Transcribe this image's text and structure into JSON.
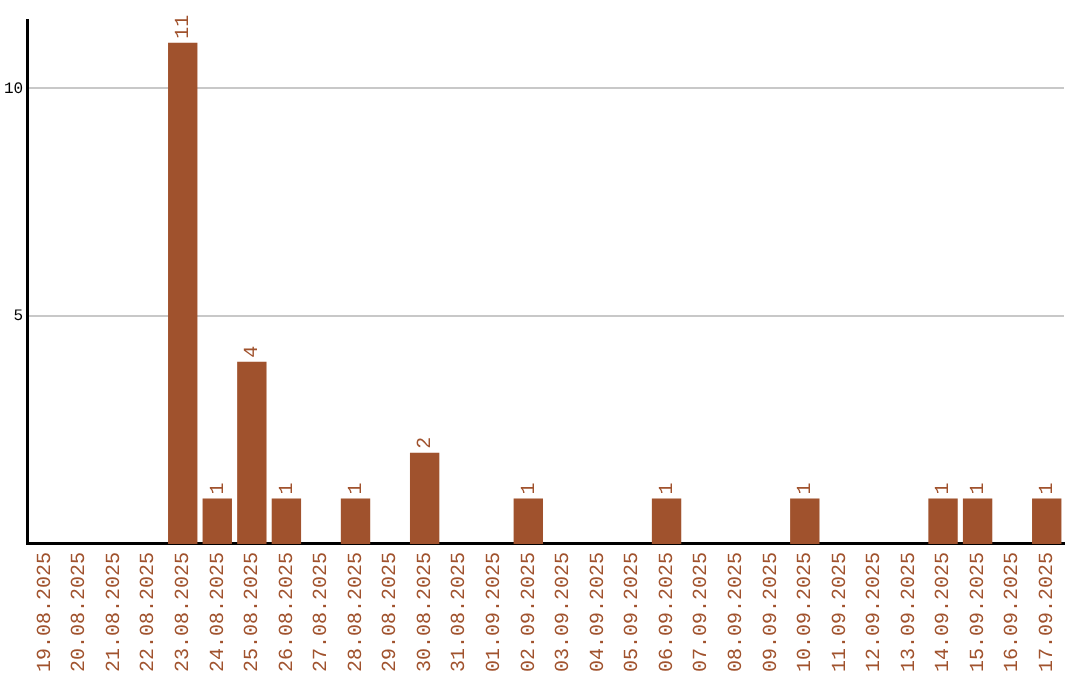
{
  "chart_data": {
    "type": "bar",
    "categories": [
      "19.08.2025",
      "20.08.2025",
      "21.08.2025",
      "22.08.2025",
      "23.08.2025",
      "24.08.2025",
      "25.08.2025",
      "26.08.2025",
      "27.08.2025",
      "28.08.2025",
      "29.08.2025",
      "30.08.2025",
      "31.08.2025",
      "01.09.2025",
      "02.09.2025",
      "03.09.2025",
      "04.09.2025",
      "05.09.2025",
      "06.09.2025",
      "07.09.2025",
      "08.09.2025",
      "09.09.2025",
      "10.09.2025",
      "11.09.2025",
      "12.09.2025",
      "13.09.2025",
      "14.09.2025",
      "15.09.2025",
      "16.09.2025",
      "17.09.2025"
    ],
    "values": [
      0,
      0,
      0,
      0,
      11,
      1,
      4,
      1,
      0,
      1,
      0,
      2,
      0,
      0,
      1,
      0,
      0,
      0,
      1,
      0,
      0,
      0,
      1,
      0,
      0,
      0,
      1,
      1,
      0,
      1
    ],
    "value_labels": [
      null,
      null,
      null,
      null,
      "11",
      "1",
      "4",
      "1",
      null,
      "1",
      null,
      "2",
      null,
      null,
      "1",
      null,
      null,
      null,
      "1",
      null,
      null,
      null,
      "1",
      null,
      null,
      null,
      "1",
      "1",
      null,
      "1"
    ],
    "color": "#a0522d",
    "ylim": [
      0,
      11.5
    ],
    "yticks": [
      5,
      10
    ],
    "grid": "y",
    "legend": false
  }
}
